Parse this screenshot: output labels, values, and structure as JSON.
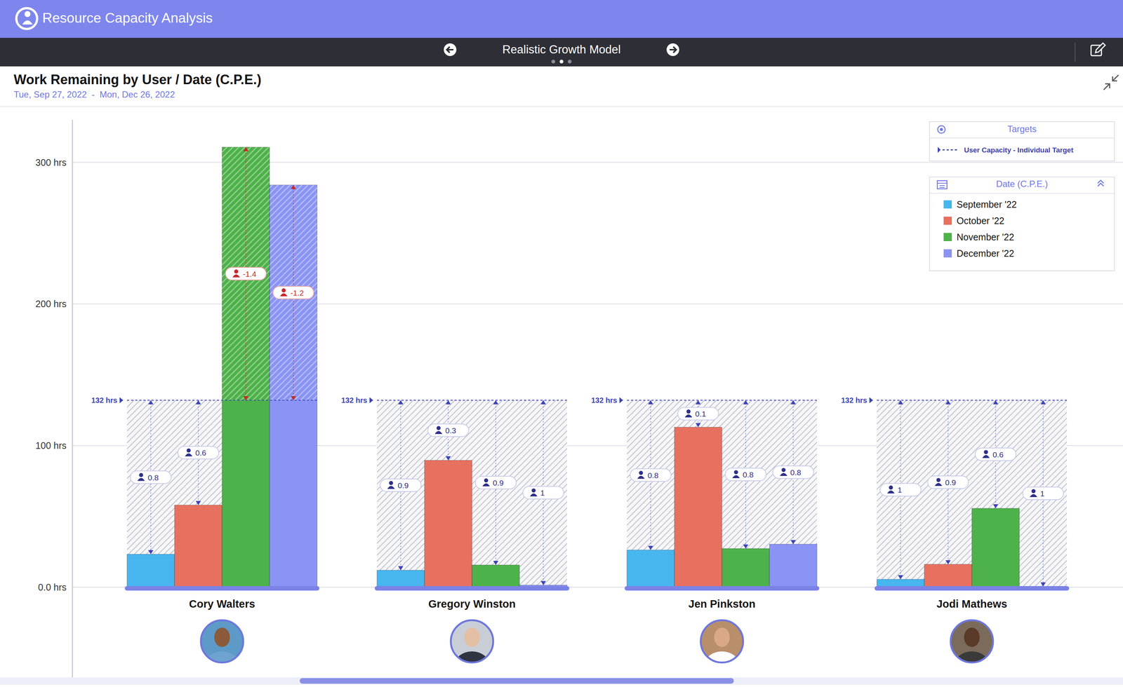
{
  "header": {
    "app_title": "Resource Capacity Analysis",
    "model_name": "Realistic Growth Model"
  },
  "chart_data": {
    "type": "bar",
    "title": "Work Remaining by User / Date (C.P.E.)",
    "subtitle": "Tue, Sep 27, 2022  -  Mon, Dec 26, 2022",
    "categories": [
      "Cory Walters",
      "Gregory Winston",
      "Jen Pinkston",
      "Jodi Mathews"
    ],
    "series": [
      {
        "name": "September '22",
        "color": "#47b6ef",
        "values": [
          23.3,
          12.0,
          26.3,
          5.6
        ],
        "fte": [
          0.8,
          0.9,
          0.8,
          1
        ]
      },
      {
        "name": "October '22",
        "color": "#e8705f",
        "values": [
          58.0,
          89.6,
          113.0,
          16.2
        ],
        "fte": [
          0.6,
          0.3,
          0.1,
          0.9
        ]
      },
      {
        "name": "November '22",
        "color": "#4db24a",
        "values": [
          310.7,
          15.7,
          27.3,
          55.7
        ],
        "fte": [
          -1.4,
          0.9,
          0.8,
          0.6
        ]
      },
      {
        "name": "December '22",
        "color": "#8a94f5",
        "values": [
          284.0,
          1.5,
          30.4,
          0.5
        ],
        "fte": [
          -1.2,
          1,
          0.8,
          1
        ]
      }
    ],
    "ylim": [
      0,
      330
    ],
    "yticks": [
      {
        "value": 0,
        "label": "0.0 hrs"
      },
      {
        "value": 100,
        "label": "100 hrs"
      },
      {
        "value": 200,
        "label": "200 hrs"
      },
      {
        "value": 300,
        "label": "300 hrs"
      }
    ],
    "grid": true,
    "legend": "top-right",
    "legend_title": "Date (C.P.E.)",
    "targets": {
      "title": "Targets",
      "name": "User Capacity - Individual Target",
      "values": [
        132,
        132,
        132,
        132
      ],
      "value_labels": [
        "132 hrs",
        "132 hrs",
        "132 hrs",
        "132 hrs"
      ]
    }
  }
}
